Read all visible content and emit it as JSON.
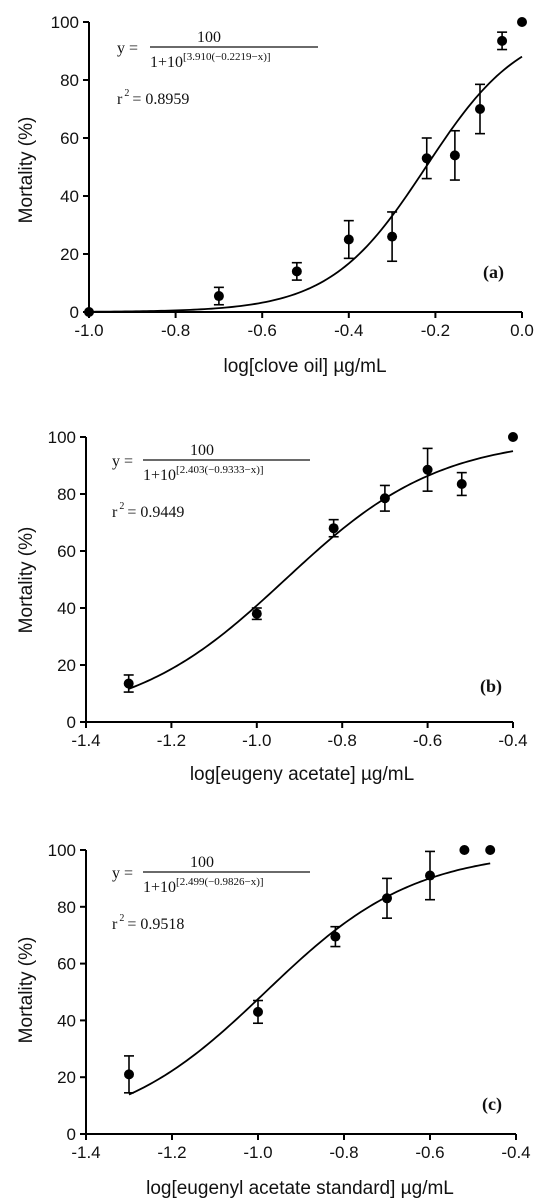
{
  "chart_data": [
    {
      "type": "scatter",
      "panel_label": "(a)",
      "xlabel": "log[clove oil] µg/mL",
      "ylabel": "Mortality (%)",
      "xlim": [
        -1.0,
        0.0
      ],
      "ylim": [
        0,
        100
      ],
      "xticks": [
        "-1.0",
        "-0.8",
        "-0.6",
        "-0.4",
        "-0.2",
        "0.0"
      ],
      "yticks": [
        "0",
        "20",
        "40",
        "60",
        "80",
        "100"
      ],
      "equation": {
        "lhs": "y =",
        "numerator": "100",
        "denominator": "1+10",
        "exponent": "[3.910(−0.2219−x)]",
        "r2_label": "r",
        "r2_sup": "2",
        "r2_value": "= 0.8959"
      },
      "fit": {
        "hill": 3.91,
        "log_ec50": -0.2219,
        "x_range": [
          -1.0,
          0.0
        ]
      },
      "points": [
        {
          "x": -1.0,
          "y": 0,
          "err": 0
        },
        {
          "x": -0.7,
          "y": 5.5,
          "err": 3
        },
        {
          "x": -0.52,
          "y": 14,
          "err": 3
        },
        {
          "x": -0.4,
          "y": 25,
          "err": 6.5
        },
        {
          "x": -0.3,
          "y": 26,
          "err": 8.5
        },
        {
          "x": -0.22,
          "y": 53,
          "err": 7
        },
        {
          "x": -0.155,
          "y": 54,
          "err": 8.5
        },
        {
          "x": -0.097,
          "y": 70,
          "err": 8.5
        },
        {
          "x": -0.046,
          "y": 93.5,
          "err": 3
        },
        {
          "x": 0.0,
          "y": 100,
          "err": 0
        }
      ]
    },
    {
      "type": "scatter",
      "panel_label": "(b)",
      "xlabel": "log[eugeny acetate] µg/mL",
      "ylabel": "Mortality (%)",
      "xlim": [
        -1.4,
        -0.4
      ],
      "ylim": [
        0,
        100
      ],
      "xticks": [
        "-1.4",
        "-1.2",
        "-1.0",
        "-0.8",
        "-0.6",
        "-0.4"
      ],
      "yticks": [
        "0",
        "20",
        "40",
        "60",
        "80",
        "100"
      ],
      "equation": {
        "lhs": "y =",
        "numerator": "100",
        "denominator": "1+10",
        "exponent": "[2.403(−0.9333−x)]",
        "r2_label": "r",
        "r2_sup": "2",
        "r2_value": "= 0.9449"
      },
      "fit": {
        "hill": 2.403,
        "log_ec50": -0.9333,
        "x_range": [
          -1.3,
          -0.4
        ]
      },
      "points": [
        {
          "x": -1.3,
          "y": 13.5,
          "err": 3
        },
        {
          "x": -1.0,
          "y": 38,
          "err": 2
        },
        {
          "x": -0.82,
          "y": 68,
          "err": 3
        },
        {
          "x": -0.7,
          "y": 78.5,
          "err": 4.5
        },
        {
          "x": -0.6,
          "y": 88.5,
          "err": 7.5
        },
        {
          "x": -0.52,
          "y": 83.5,
          "err": 4
        },
        {
          "x": -0.4,
          "y": 100,
          "err": 0
        }
      ]
    },
    {
      "type": "scatter",
      "panel_label": "(c)",
      "xlabel": "log[eugenyl acetate standard] µg/mL",
      "ylabel": "Mortality (%)",
      "xlim": [
        -1.4,
        -0.4
      ],
      "ylim": [
        0,
        100
      ],
      "xticks": [
        "-1.4",
        "-1.2",
        "-1.0",
        "-0.8",
        "-0.6",
        "-0.4"
      ],
      "yticks": [
        "0",
        "20",
        "40",
        "60",
        "80",
        "100"
      ],
      "equation": {
        "lhs": "y =",
        "numerator": "100",
        "denominator": "1+10",
        "exponent": "[2.499(−0.9826−x)]",
        "r2_label": "r",
        "r2_sup": "2",
        "r2_value": "= 0.9518"
      },
      "fit": {
        "hill": 2.499,
        "log_ec50": -0.9826,
        "x_range": [
          -1.3,
          -0.46
        ]
      },
      "points": [
        {
          "x": -1.3,
          "y": 21,
          "err": 6.5
        },
        {
          "x": -1.0,
          "y": 43,
          "err": 4
        },
        {
          "x": -0.82,
          "y": 69.5,
          "err": 3.5
        },
        {
          "x": -0.7,
          "y": 83,
          "err": 7
        },
        {
          "x": -0.6,
          "y": 91,
          "err": 8.5
        },
        {
          "x": -0.52,
          "y": 100,
          "err": 0
        },
        {
          "x": -0.46,
          "y": 100,
          "err": 0
        }
      ]
    }
  ]
}
